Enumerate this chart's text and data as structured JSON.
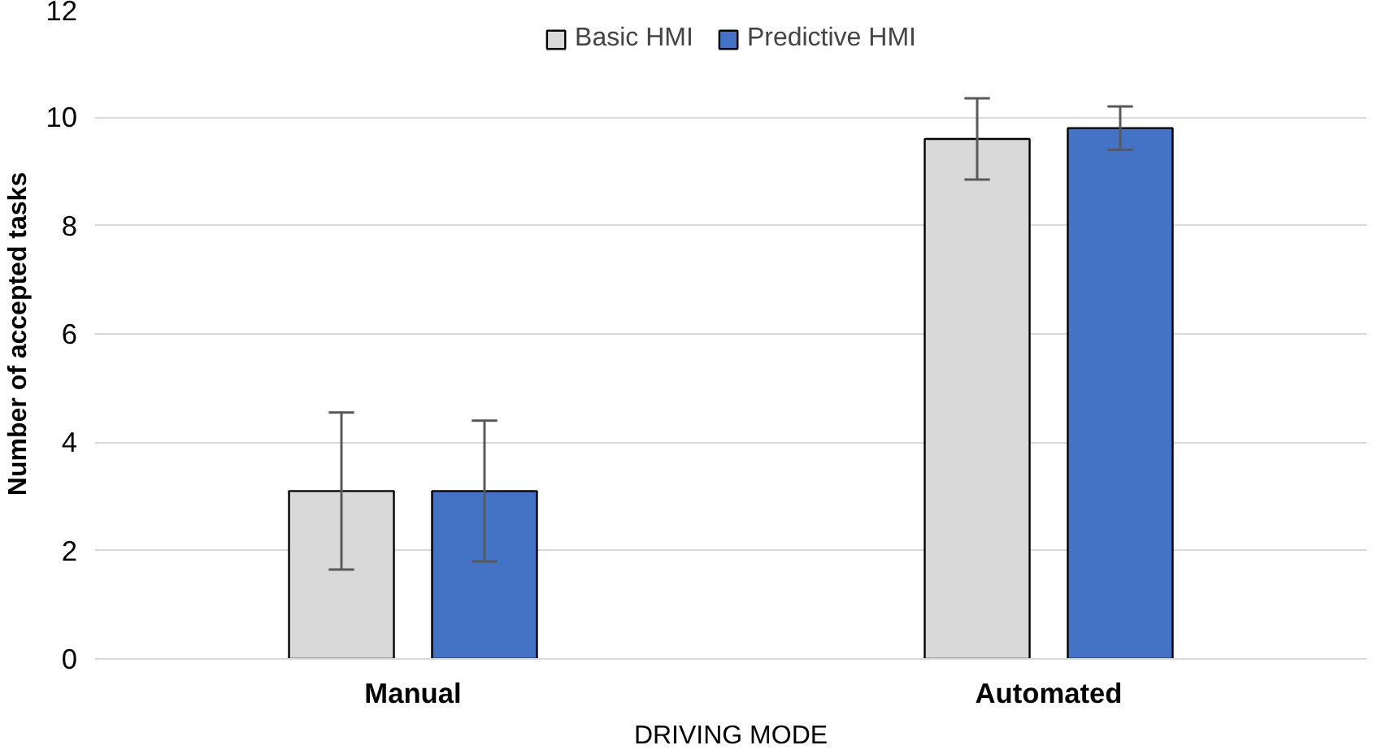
{
  "chart_data": {
    "type": "bar",
    "xlabel": "DRIVING MODE",
    "ylabel": "Number of accepted tasks",
    "categories": [
      "Manual",
      "Automated"
    ],
    "series": [
      {
        "name": "Basic HMI",
        "color": "#d9d9d9",
        "values": [
          3.1,
          9.6
        ],
        "errors": [
          1.45,
          0.75
        ]
      },
      {
        "name": "Predictive HMI",
        "color": "#4472c4",
        "values": [
          3.1,
          9.8
        ],
        "errors": [
          1.3,
          0.4
        ]
      }
    ],
    "ylim": [
      0,
      12
    ],
    "yticks": [
      0,
      2,
      4,
      6,
      8,
      10,
      12
    ],
    "grid": "y",
    "legend": "top"
  }
}
